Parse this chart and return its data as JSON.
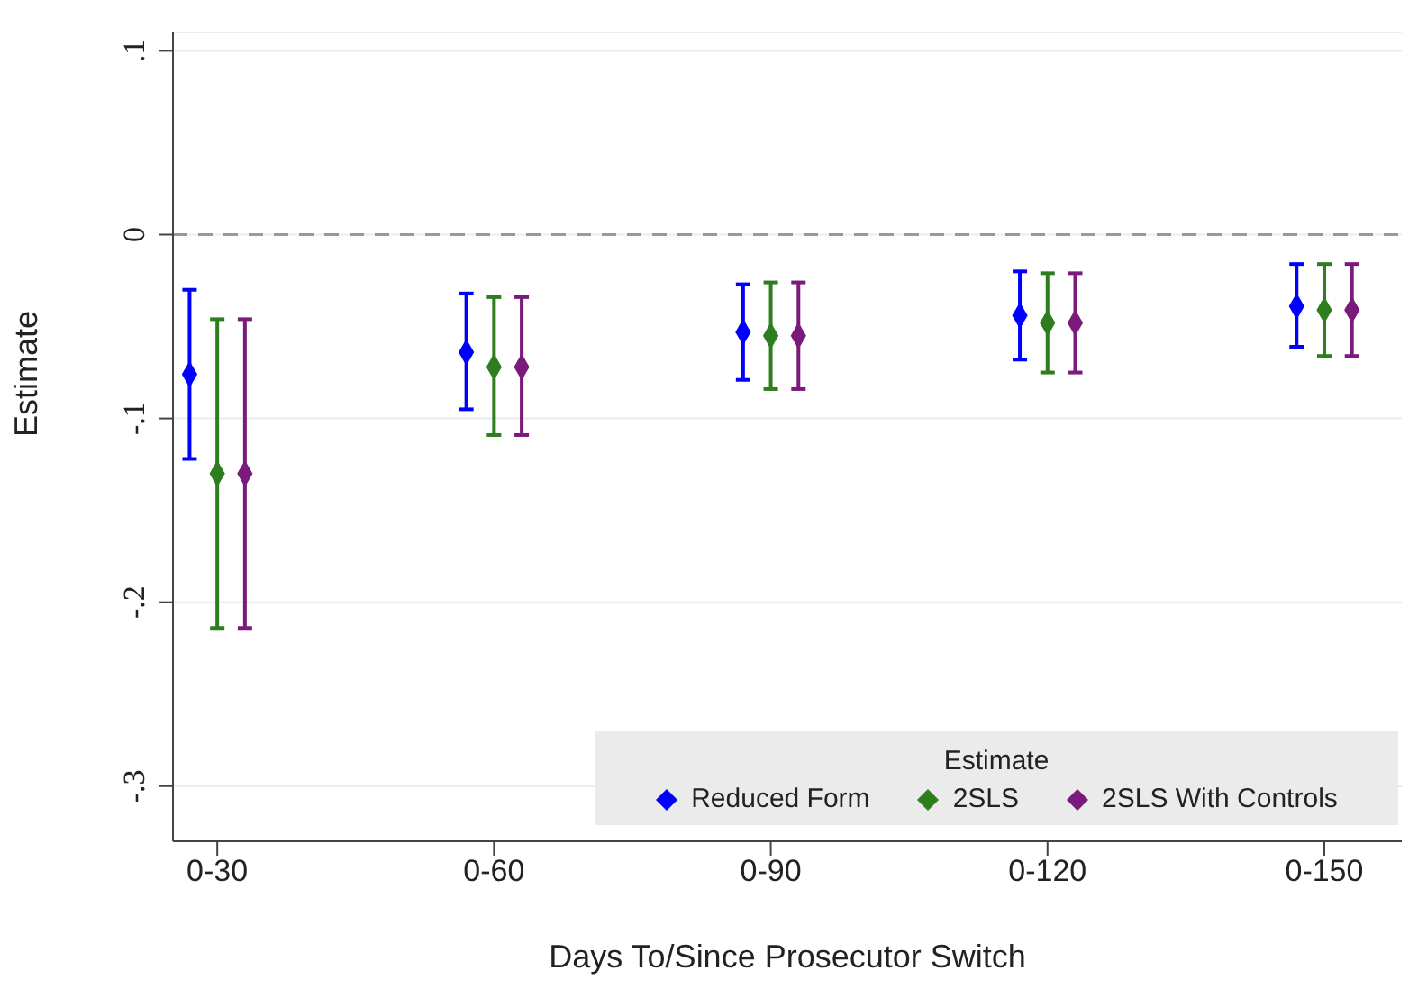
{
  "chart_data": {
    "type": "scatter",
    "xlabel": "Days To/Since Prosecutor Switch",
    "ylabel": "Estimate",
    "legend_title": "Estimate",
    "categories": [
      "0-30",
      "0-60",
      "0-90",
      "0-120",
      "0-150"
    ],
    "series": [
      {
        "name": "Reduced Form",
        "color": "#0000ff",
        "values": [
          -0.076,
          -0.064,
          -0.053,
          -0.044,
          -0.039
        ],
        "errors": [
          [
            -0.122,
            -0.03
          ],
          [
            -0.095,
            -0.032
          ],
          [
            -0.079,
            -0.027
          ],
          [
            -0.068,
            -0.02
          ],
          [
            -0.061,
            -0.016
          ]
        ]
      },
      {
        "name": "2SLS",
        "color": "#2e7d1e",
        "values": [
          -0.13,
          -0.072,
          -0.055,
          -0.048,
          -0.041
        ],
        "errors": [
          [
            -0.214,
            -0.046
          ],
          [
            -0.109,
            -0.034
          ],
          [
            -0.084,
            -0.026
          ],
          [
            -0.075,
            -0.021
          ],
          [
            -0.066,
            -0.016
          ]
        ]
      },
      {
        "name": "2SLS With Controls",
        "color": "#7a1a7a",
        "values": [
          -0.13,
          -0.072,
          -0.055,
          -0.048,
          -0.041
        ],
        "errors": [
          [
            -0.214,
            -0.046
          ],
          [
            -0.109,
            -0.034
          ],
          [
            -0.084,
            -0.026
          ],
          [
            -0.075,
            -0.021
          ],
          [
            -0.066,
            -0.016
          ]
        ]
      }
    ],
    "ylim": [
      -0.33,
      0.11
    ],
    "yticks": [
      {
        "value": 0.1,
        "label": ".1"
      },
      0,
      {
        "value": -0.1,
        "label": "-.1"
      },
      {
        "value": -0.2,
        "label": "-.2"
      },
      {
        "value": -0.3,
        "label": "-.3"
      }
    ],
    "grid": "y",
    "marker": "diamond",
    "legend": "bottom right",
    "ref_lines": [
      {
        "axis": "y",
        "value": 0,
        "color": "#999999",
        "line_style": "dashed"
      }
    ]
  }
}
